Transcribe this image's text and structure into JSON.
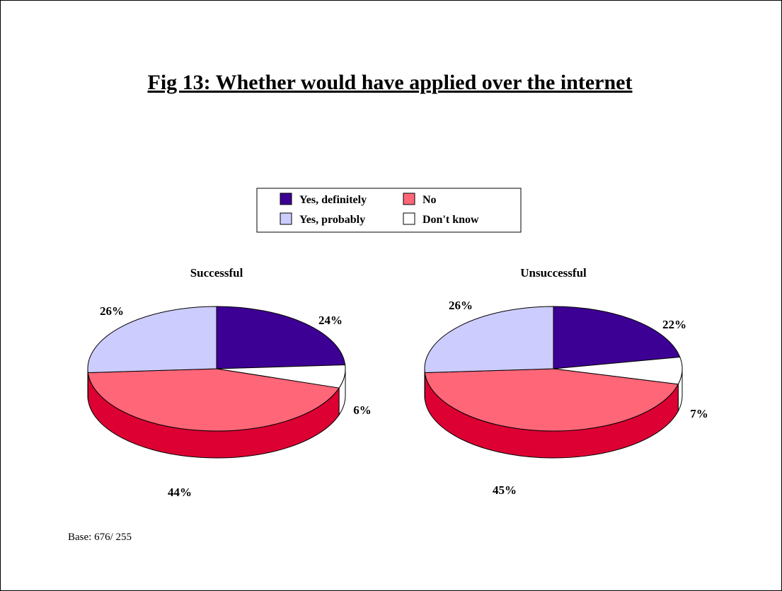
{
  "title": "Fig 13: Whether would have applied over the internet",
  "base_note": "Base: 676/ 255",
  "colors": {
    "yes_definitely": "#3d0094",
    "yes_probably": "#ccccff",
    "no": "#ff6678",
    "no_side": "#dd0033",
    "dont_know": "#ffffff"
  },
  "chart_data": {
    "type": "pie",
    "categories": [
      "Yes, definitely",
      "No",
      "Yes, probably",
      "Don't know"
    ],
    "legend_placement": "top-center",
    "pies": [
      {
        "name": "Successful",
        "values": [
          {
            "category": "Yes, definitely",
            "value": 24,
            "label": "24%"
          },
          {
            "category": "Don't know",
            "value": 6,
            "label": "6%"
          },
          {
            "category": "No",
            "value": 44,
            "label": "44%"
          },
          {
            "category": "Yes, probably",
            "value": 26,
            "label": "26%"
          }
        ]
      },
      {
        "name": "Unsuccessful",
        "values": [
          {
            "category": "Yes, definitely",
            "value": 22,
            "label": "22%"
          },
          {
            "category": "Don't know",
            "value": 7,
            "label": "7%"
          },
          {
            "category": "No",
            "value": 45,
            "label": "45%"
          },
          {
            "category": "Yes, probably",
            "value": 26,
            "label": "26%"
          }
        ]
      }
    ]
  }
}
